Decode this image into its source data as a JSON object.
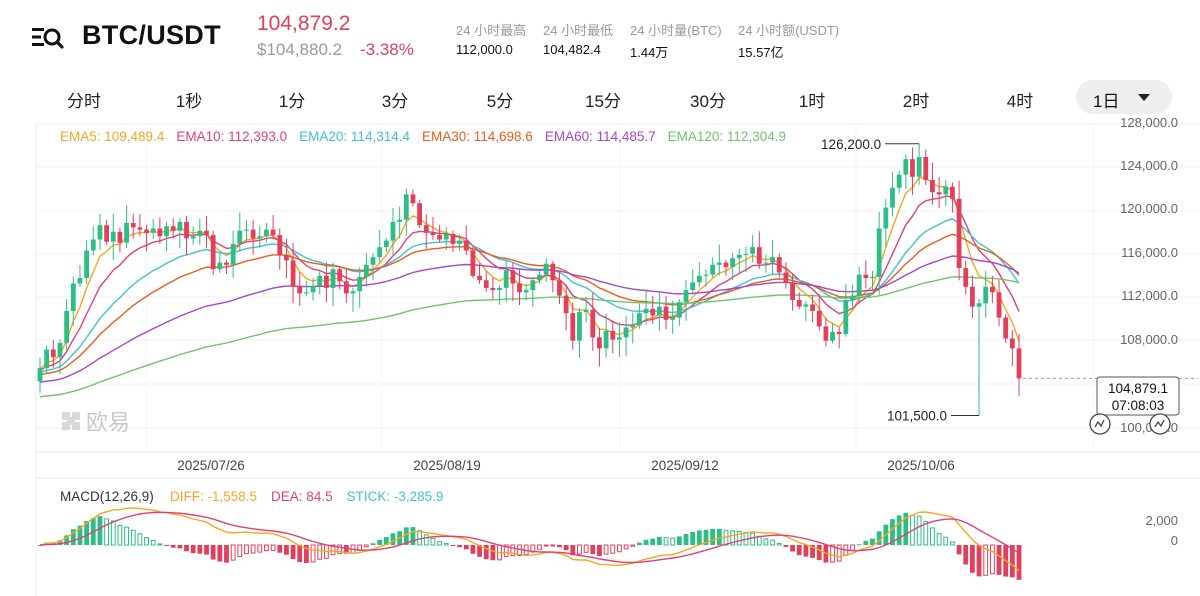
{
  "header": {
    "pair": "BTC/USDT",
    "last_price": "104,879.2",
    "usd_price": "$104,880.2",
    "change": "-3.38%",
    "stats": [
      {
        "label": "24 小时最高",
        "value": "112,000.0"
      },
      {
        "label": "24 小时最低",
        "value": "104,482.4"
      },
      {
        "label": "24 小时量(BTC)",
        "value": "1.44万"
      },
      {
        "label": "24 小时额(USDT)",
        "value": "15.57亿"
      }
    ]
  },
  "tabs": [
    "分时",
    "1秒",
    "1分",
    "3分",
    "5分",
    "15分",
    "30分",
    "1时",
    "2时",
    "4时"
  ],
  "active_tab": "1日",
  "watermark": "欧易",
  "colors": {
    "up": "#2ebd85",
    "down": "#e0405c",
    "ema5": "#f5a623",
    "ema10": "#e0407a",
    "ema20": "#3fc1d6",
    "ema30": "#e85d1c",
    "ema60": "#a646c8",
    "ema120": "#6fc46f"
  },
  "chart_data": [
    {
      "type": "candlestick",
      "title": "",
      "ylim": [
        100000,
        128000
      ],
      "y_ticks": [
        "128,000.0",
        "124,000.0",
        "120,000.0",
        "116,000.0",
        "112,000.0",
        "108,000.0",
        "100,000.0"
      ],
      "x_ticks": [
        "2025/07/26",
        "2025/08/19",
        "2025/09/12",
        "2025/10/06"
      ],
      "ema_legend": [
        {
          "name": "EMA5",
          "value": "109,489.4",
          "color": "#f5a623"
        },
        {
          "name": "EMA10",
          "value": "112,393.0",
          "color": "#e0407a"
        },
        {
          "name": "EMA20",
          "value": "114,314.4",
          "color": "#3fc1d6"
        },
        {
          "name": "EMA30",
          "value": "114,698.6",
          "color": "#e85d1c"
        },
        {
          "name": "EMA60",
          "value": "114,485.7",
          "color": "#a646c8"
        },
        {
          "name": "EMA120",
          "value": "112,304.9",
          "color": "#6fc46f"
        }
      ],
      "annotations": {
        "high": "126,200.0",
        "low": "101,500.0"
      },
      "current_price": {
        "price": "104,879.1",
        "countdown": "07:08:03"
      },
      "closes": [
        105800,
        107500,
        106800,
        108100,
        111000,
        113500,
        114000,
        116500,
        117500,
        118800,
        117300,
        118200,
        117200,
        119000,
        118600,
        118400,
        118100,
        118500,
        117800,
        118700,
        118300,
        119100,
        117600,
        117800,
        118300,
        117900,
        114800,
        115400,
        115200,
        117100,
        118300,
        118400,
        117600,
        117800,
        118400,
        117900,
        116100,
        115600,
        113200,
        112600,
        112700,
        113300,
        114200,
        113100,
        114800,
        113700,
        112600,
        112800,
        114100,
        115200,
        115900,
        116800,
        117400,
        119100,
        119300,
        121600,
        120800,
        118800,
        118100,
        117900,
        117500,
        118000,
        117100,
        117400,
        116500,
        114200,
        113800,
        113100,
        112900,
        113100,
        114700,
        113500,
        112700,
        112900,
        113800,
        114300,
        115300,
        113800,
        112400,
        110800,
        108300,
        110900,
        111100,
        108600,
        107600,
        109200,
        108400,
        108600,
        109500,
        109700,
        110800,
        111200,
        110600,
        111400,
        110200,
        110400,
        111800,
        112900,
        113600,
        114200,
        114300,
        115200,
        115400,
        115000,
        115800,
        116100,
        116200,
        116800,
        115300,
        115400,
        115900,
        114500,
        113600,
        112000,
        111400,
        111600,
        111000,
        109600,
        108300,
        109100,
        108900,
        112000,
        112400,
        114300,
        114000,
        114100,
        118500,
        120400,
        122200,
        123400,
        124800,
        123200,
        125000,
        122900,
        121800,
        121600,
        122300,
        121200,
        114900,
        113200,
        111400,
        111700,
        113200,
        112700,
        110400,
        108500,
        107600,
        104879
      ],
      "current_emas": {
        "ema5": 109489.4,
        "ema10": 112393.0,
        "ema20": 114314.4,
        "ema30": 114698.6,
        "ema60": 114485.7,
        "ema120": 112304.9
      }
    },
    {
      "type": "bar",
      "title": "MACD(12,26,9)",
      "legend": [
        {
          "name": "DIFF",
          "value": "-1,558.5",
          "color": "#f5a623"
        },
        {
          "name": "DEA",
          "value": "84.5",
          "color": "#e0407a"
        },
        {
          "name": "STICK",
          "value": "-3,285.9",
          "color": "#3fc1d6"
        }
      ],
      "y_ticks": [
        "2,000",
        "0"
      ]
    }
  ]
}
